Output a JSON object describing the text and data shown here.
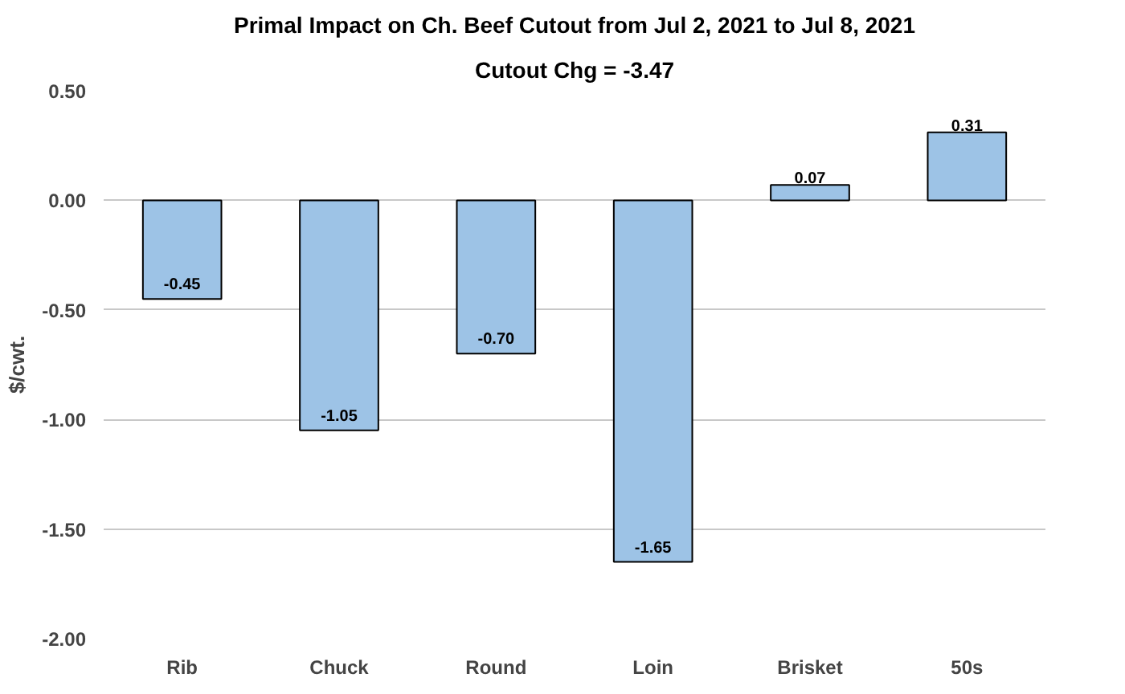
{
  "chart_data": {
    "type": "bar",
    "title": "Primal Impact on Ch. Beef Cutout from Jul 2, 2021 to Jul 8, 2021",
    "subtitle": "Cutout Chg = -3.47",
    "ylabel": "$/cwt.",
    "categories": [
      "Rib",
      "Chuck",
      "Round",
      "Loin",
      "Brisket",
      "50s"
    ],
    "values": [
      -0.45,
      -1.05,
      -0.7,
      -1.65,
      0.07,
      0.31
    ],
    "value_labels": [
      "-0.45",
      "-1.05",
      "-0.70",
      "-1.65",
      "0.07",
      "0.31"
    ],
    "color": "#9dc3e6",
    "ylim": [
      -2.0,
      0.5
    ],
    "yticks": [
      {
        "value": -2.0,
        "label": "-2.00"
      },
      {
        "value": -1.5,
        "label": "-1.50"
      },
      {
        "value": -1.0,
        "label": "-1.00"
      },
      {
        "value": -0.5,
        "label": "-0.50"
      },
      {
        "value": 0,
        "label": "0.00"
      },
      {
        "value": 0.5,
        "label": "0.50"
      }
    ],
    "grid": "y"
  }
}
